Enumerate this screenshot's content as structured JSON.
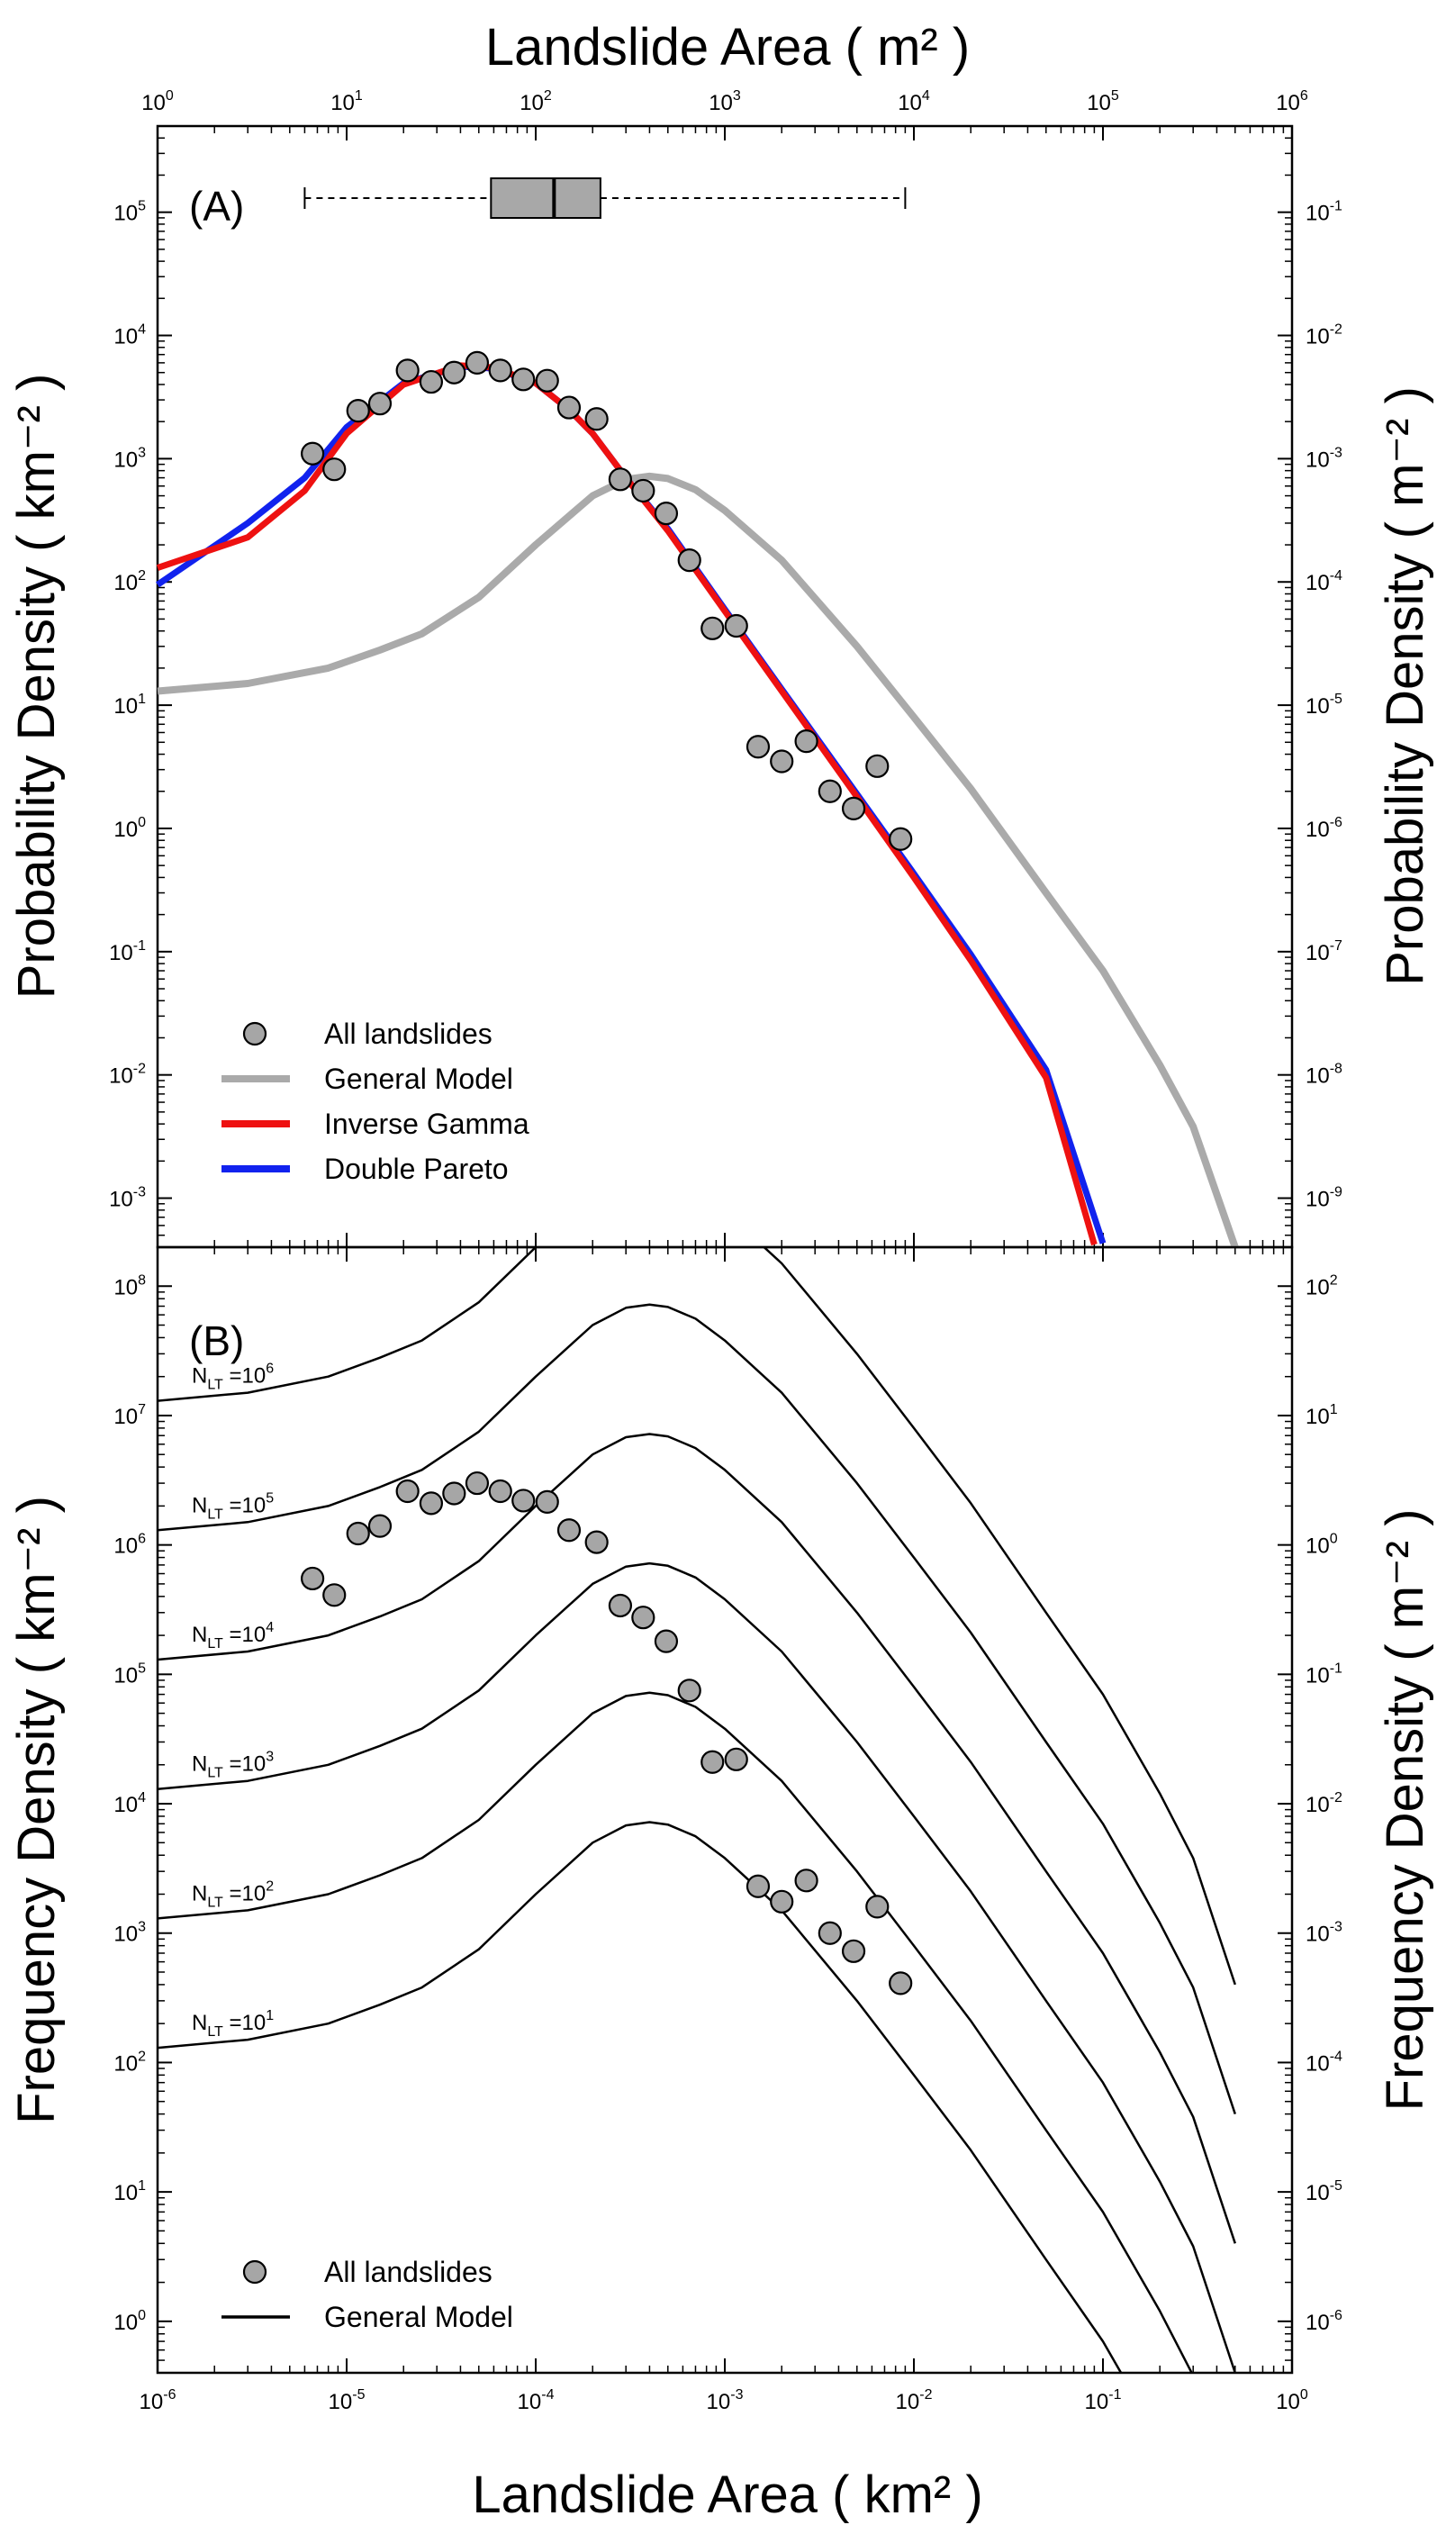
{
  "chart_data": [
    {
      "type": "line",
      "panel": "A",
      "panel_label": "(A)",
      "top_axis_title": "Landslide Area ( m² )",
      "ylabel_left": "Probability Density ( km⁻² )",
      "ylabel_right": "Probability Density ( m⁻² )",
      "xlabel": "Landslide Area ( km² )",
      "x_scale": "log",
      "y_scale": "log",
      "xlim_km2": [
        1e-06,
        1
      ],
      "xlim_m2": [
        1,
        1000000.0
      ],
      "ylim_left_km2": [
        0.0004,
        500000
      ],
      "ylim_right_m2": [
        4e-10,
        0.5
      ],
      "top_ticks": [
        {
          "base": "10",
          "exp": "0"
        },
        {
          "base": "10",
          "exp": "1"
        },
        {
          "base": "10",
          "exp": "2"
        },
        {
          "base": "10",
          "exp": "3"
        },
        {
          "base": "10",
          "exp": "4"
        },
        {
          "base": "10",
          "exp": "5"
        },
        {
          "base": "10",
          "exp": "6"
        }
      ],
      "left_ticks": [
        {
          "base": "10",
          "exp": "-3"
        },
        {
          "base": "10",
          "exp": "-2"
        },
        {
          "base": "10",
          "exp": "-1"
        },
        {
          "base": "10",
          "exp": "0"
        },
        {
          "base": "10",
          "exp": "1"
        },
        {
          "base": "10",
          "exp": "2"
        },
        {
          "base": "10",
          "exp": "3"
        },
        {
          "base": "10",
          "exp": "4"
        },
        {
          "base": "10",
          "exp": "5"
        }
      ],
      "right_ticks": [
        {
          "base": "10",
          "exp": "-9"
        },
        {
          "base": "10",
          "exp": "-8"
        },
        {
          "base": "10",
          "exp": "-7"
        },
        {
          "base": "10",
          "exp": "-6"
        },
        {
          "base": "10",
          "exp": "-5"
        },
        {
          "base": "10",
          "exp": "-4"
        },
        {
          "base": "10",
          "exp": "-3"
        },
        {
          "base": "10",
          "exp": "-2"
        },
        {
          "base": "10",
          "exp": "-1"
        }
      ],
      "boxplot_m2": {
        "whisker_low": 6,
        "q1": 58,
        "median": 125,
        "q3": 220,
        "whisker_high": 9000
      },
      "legend": [
        {
          "label": "All landslides",
          "kind": "marker"
        },
        {
          "label": "General Model",
          "kind": "line",
          "color": "#aaaaaa"
        },
        {
          "label": "Inverse Gamma",
          "kind": "line",
          "color": "#ee1111"
        },
        {
          "label": "Double Pareto",
          "kind": "line",
          "color": "#1122ee"
        }
      ],
      "points": [
        {
          "x": 6.6e-06,
          "y": 1100
        },
        {
          "x": 8.6e-06,
          "y": 820
        },
        {
          "x": 1.15e-05,
          "y": 2450
        },
        {
          "x": 1.5e-05,
          "y": 2800
        },
        {
          "x": 2.1e-05,
          "y": 5200
        },
        {
          "x": 2.8e-05,
          "y": 4200
        },
        {
          "x": 3.7e-05,
          "y": 5000
        },
        {
          "x": 4.9e-05,
          "y": 6000
        },
        {
          "x": 6.5e-05,
          "y": 5200
        },
        {
          "x": 8.6e-05,
          "y": 4400
        },
        {
          "x": 0.000115,
          "y": 4300
        },
        {
          "x": 0.00015,
          "y": 2600
        },
        {
          "x": 0.00021,
          "y": 2100
        },
        {
          "x": 0.00028,
          "y": 680
        },
        {
          "x": 0.00037,
          "y": 550
        },
        {
          "x": 0.00049,
          "y": 360
        },
        {
          "x": 0.00065,
          "y": 150
        },
        {
          "x": 0.00086,
          "y": 42
        },
        {
          "x": 0.00115,
          "y": 44
        },
        {
          "x": 0.0015,
          "y": 4.6
        },
        {
          "x": 0.002,
          "y": 3.5
        },
        {
          "x": 0.0027,
          "y": 5.1
        },
        {
          "x": 0.0036,
          "y": 2.0
        },
        {
          "x": 0.0048,
          "y": 1.45
        },
        {
          "x": 0.0064,
          "y": 3.2
        },
        {
          "x": 0.0085,
          "y": 0.82
        }
      ],
      "series": [
        {
          "name": "General Model",
          "color": "#aaaaaa",
          "x": [
            1e-06,
            3e-06,
            8e-06,
            1.5e-05,
            2.5e-05,
            5e-05,
            0.0001,
            0.0002,
            0.0003,
            0.0004,
            0.0005,
            0.0007,
            0.001,
            0.002,
            0.005,
            0.01,
            0.02,
            0.05,
            0.1,
            0.2,
            0.3,
            0.5
          ],
          "y": [
            13,
            15,
            20,
            28,
            38,
            75,
            200,
            500,
            680,
            720,
            690,
            560,
            380,
            150,
            30,
            8,
            2.1,
            0.3,
            0.07,
            0.012,
            0.0038,
            0.0004
          ]
        },
        {
          "name": "Inverse Gamma",
          "color": "#ee1111",
          "x": [
            1e-06,
            3e-06,
            6e-06,
            1e-05,
            2e-05,
            4e-05,
            6e-05,
            0.0001,
            0.00015,
            0.0002,
            0.0003,
            0.0005,
            0.001,
            0.002,
            0.005,
            0.01,
            0.02,
            0.05,
            0.09
          ],
          "y": [
            130,
            230,
            550,
            1600,
            4000,
            5700,
            5500,
            4100,
            2500,
            1600,
            700,
            260,
            58,
            13,
            1.8,
            0.4,
            0.085,
            0.0095,
            0.00042
          ]
        },
        {
          "name": "Double Pareto",
          "color": "#1122ee",
          "x": [
            1e-06,
            3e-06,
            6e-06,
            1e-05,
            2e-05,
            4e-05,
            6e-05,
            0.0001,
            0.00015,
            0.0002,
            0.0003,
            0.0005,
            0.001,
            0.002,
            0.005,
            0.01,
            0.02,
            0.05,
            0.1
          ],
          "y": [
            95,
            300,
            700,
            1800,
            4100,
            5600,
            5400,
            4100,
            2500,
            1600,
            700,
            270,
            60,
            13.5,
            1.9,
            0.43,
            0.095,
            0.011,
            0.00043
          ]
        }
      ]
    },
    {
      "type": "line",
      "panel": "B",
      "panel_label": "(B)",
      "ylabel_left": "Frequency Density ( km⁻² )",
      "ylabel_right": "Frequency Density ( m⁻² )",
      "xlabel": "Landslide Area ( km² )",
      "x_scale": "log",
      "y_scale": "log",
      "xlim_km2": [
        1e-06,
        1
      ],
      "ylim_left_km2": [
        0.4,
        200000000
      ],
      "ylim_right_m2": [
        4e-07,
        200
      ],
      "bottom_ticks": [
        {
          "base": "10",
          "exp": "-6"
        },
        {
          "base": "10",
          "exp": "-5"
        },
        {
          "base": "10",
          "exp": "-4"
        },
        {
          "base": "10",
          "exp": "-3"
        },
        {
          "base": "10",
          "exp": "-2"
        },
        {
          "base": "10",
          "exp": "-1"
        },
        {
          "base": "10",
          "exp": "0"
        }
      ],
      "left_ticks": [
        {
          "base": "10",
          "exp": "0"
        },
        {
          "base": "10",
          "exp": "1"
        },
        {
          "base": "10",
          "exp": "2"
        },
        {
          "base": "10",
          "exp": "3"
        },
        {
          "base": "10",
          "exp": "4"
        },
        {
          "base": "10",
          "exp": "5"
        },
        {
          "base": "10",
          "exp": "6"
        },
        {
          "base": "10",
          "exp": "7"
        },
        {
          "base": "10",
          "exp": "8"
        }
      ],
      "right_ticks": [
        {
          "base": "10",
          "exp": "-6"
        },
        {
          "base": "10",
          "exp": "-5"
        },
        {
          "base": "10",
          "exp": "-4"
        },
        {
          "base": "10",
          "exp": "-3"
        },
        {
          "base": "10",
          "exp": "-2"
        },
        {
          "base": "10",
          "exp": "-1"
        },
        {
          "base": "10",
          "exp": "0"
        },
        {
          "base": "10",
          "exp": "1"
        },
        {
          "base": "10",
          "exp": "2"
        }
      ],
      "legend": [
        {
          "label": "All landslides",
          "kind": "marker"
        },
        {
          "label": "General Model",
          "kind": "line",
          "color": "#000000"
        }
      ],
      "model_curve_per_NLT": "frequency = N_LT × General Model (panel A)",
      "nlt_labels": [
        {
          "pre": "N",
          "sub": "LT",
          "mid": " =10",
          "exp": "1",
          "value": 10
        },
        {
          "pre": "N",
          "sub": "LT",
          "mid": " =10",
          "exp": "2",
          "value": 100
        },
        {
          "pre": "N",
          "sub": "LT",
          "mid": " =10",
          "exp": "3",
          "value": 1000
        },
        {
          "pre": "N",
          "sub": "LT",
          "mid": " =10",
          "exp": "4",
          "value": 10000
        },
        {
          "pre": "N",
          "sub": "LT",
          "mid": " =10",
          "exp": "5",
          "value": 100000
        },
        {
          "pre": "N",
          "sub": "LT",
          "mid": " =10",
          "exp": "6",
          "value": 1000000
        }
      ],
      "points_scale_factor": 500
    }
  ]
}
